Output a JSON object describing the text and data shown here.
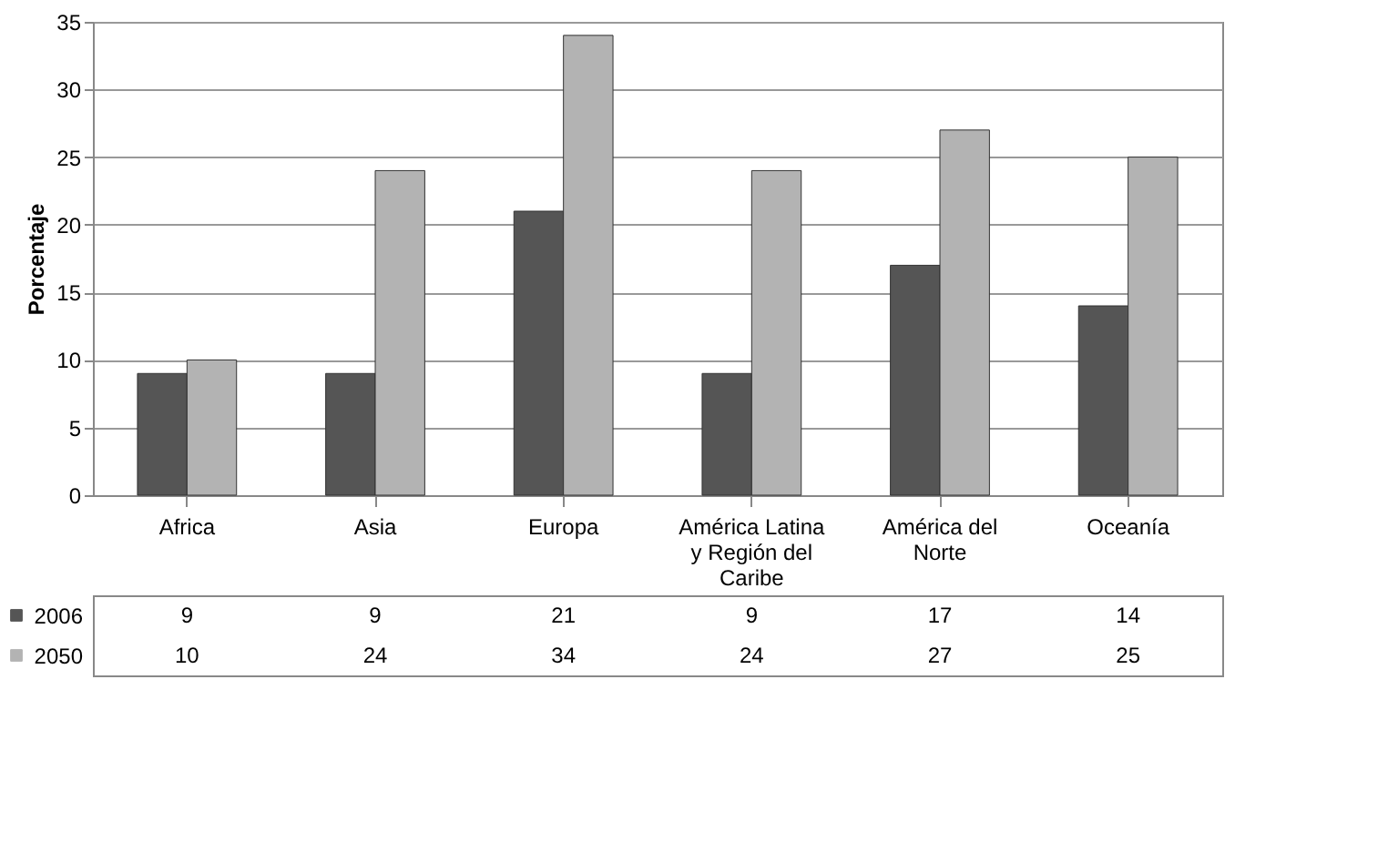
{
  "chart_data": {
    "type": "bar",
    "ylabel": "Porcentaje",
    "categories": [
      "Africa",
      "Asia",
      "Europa",
      "América Latina y Región del Caribe",
      "América del Norte",
      "Oceanía"
    ],
    "series": [
      {
        "name": "2006",
        "color": "#555555",
        "values": [
          9,
          9,
          21,
          9,
          17,
          14
        ]
      },
      {
        "name": "2050",
        "color": "#b3b3b3",
        "values": [
          10,
          24,
          34,
          24,
          27,
          25
        ]
      }
    ],
    "ylim": [
      0,
      35
    ],
    "yticks": [
      0,
      5,
      10,
      15,
      20,
      25,
      30,
      35
    ],
    "grid": "y",
    "data_labels": true,
    "legend": "bottom"
  }
}
